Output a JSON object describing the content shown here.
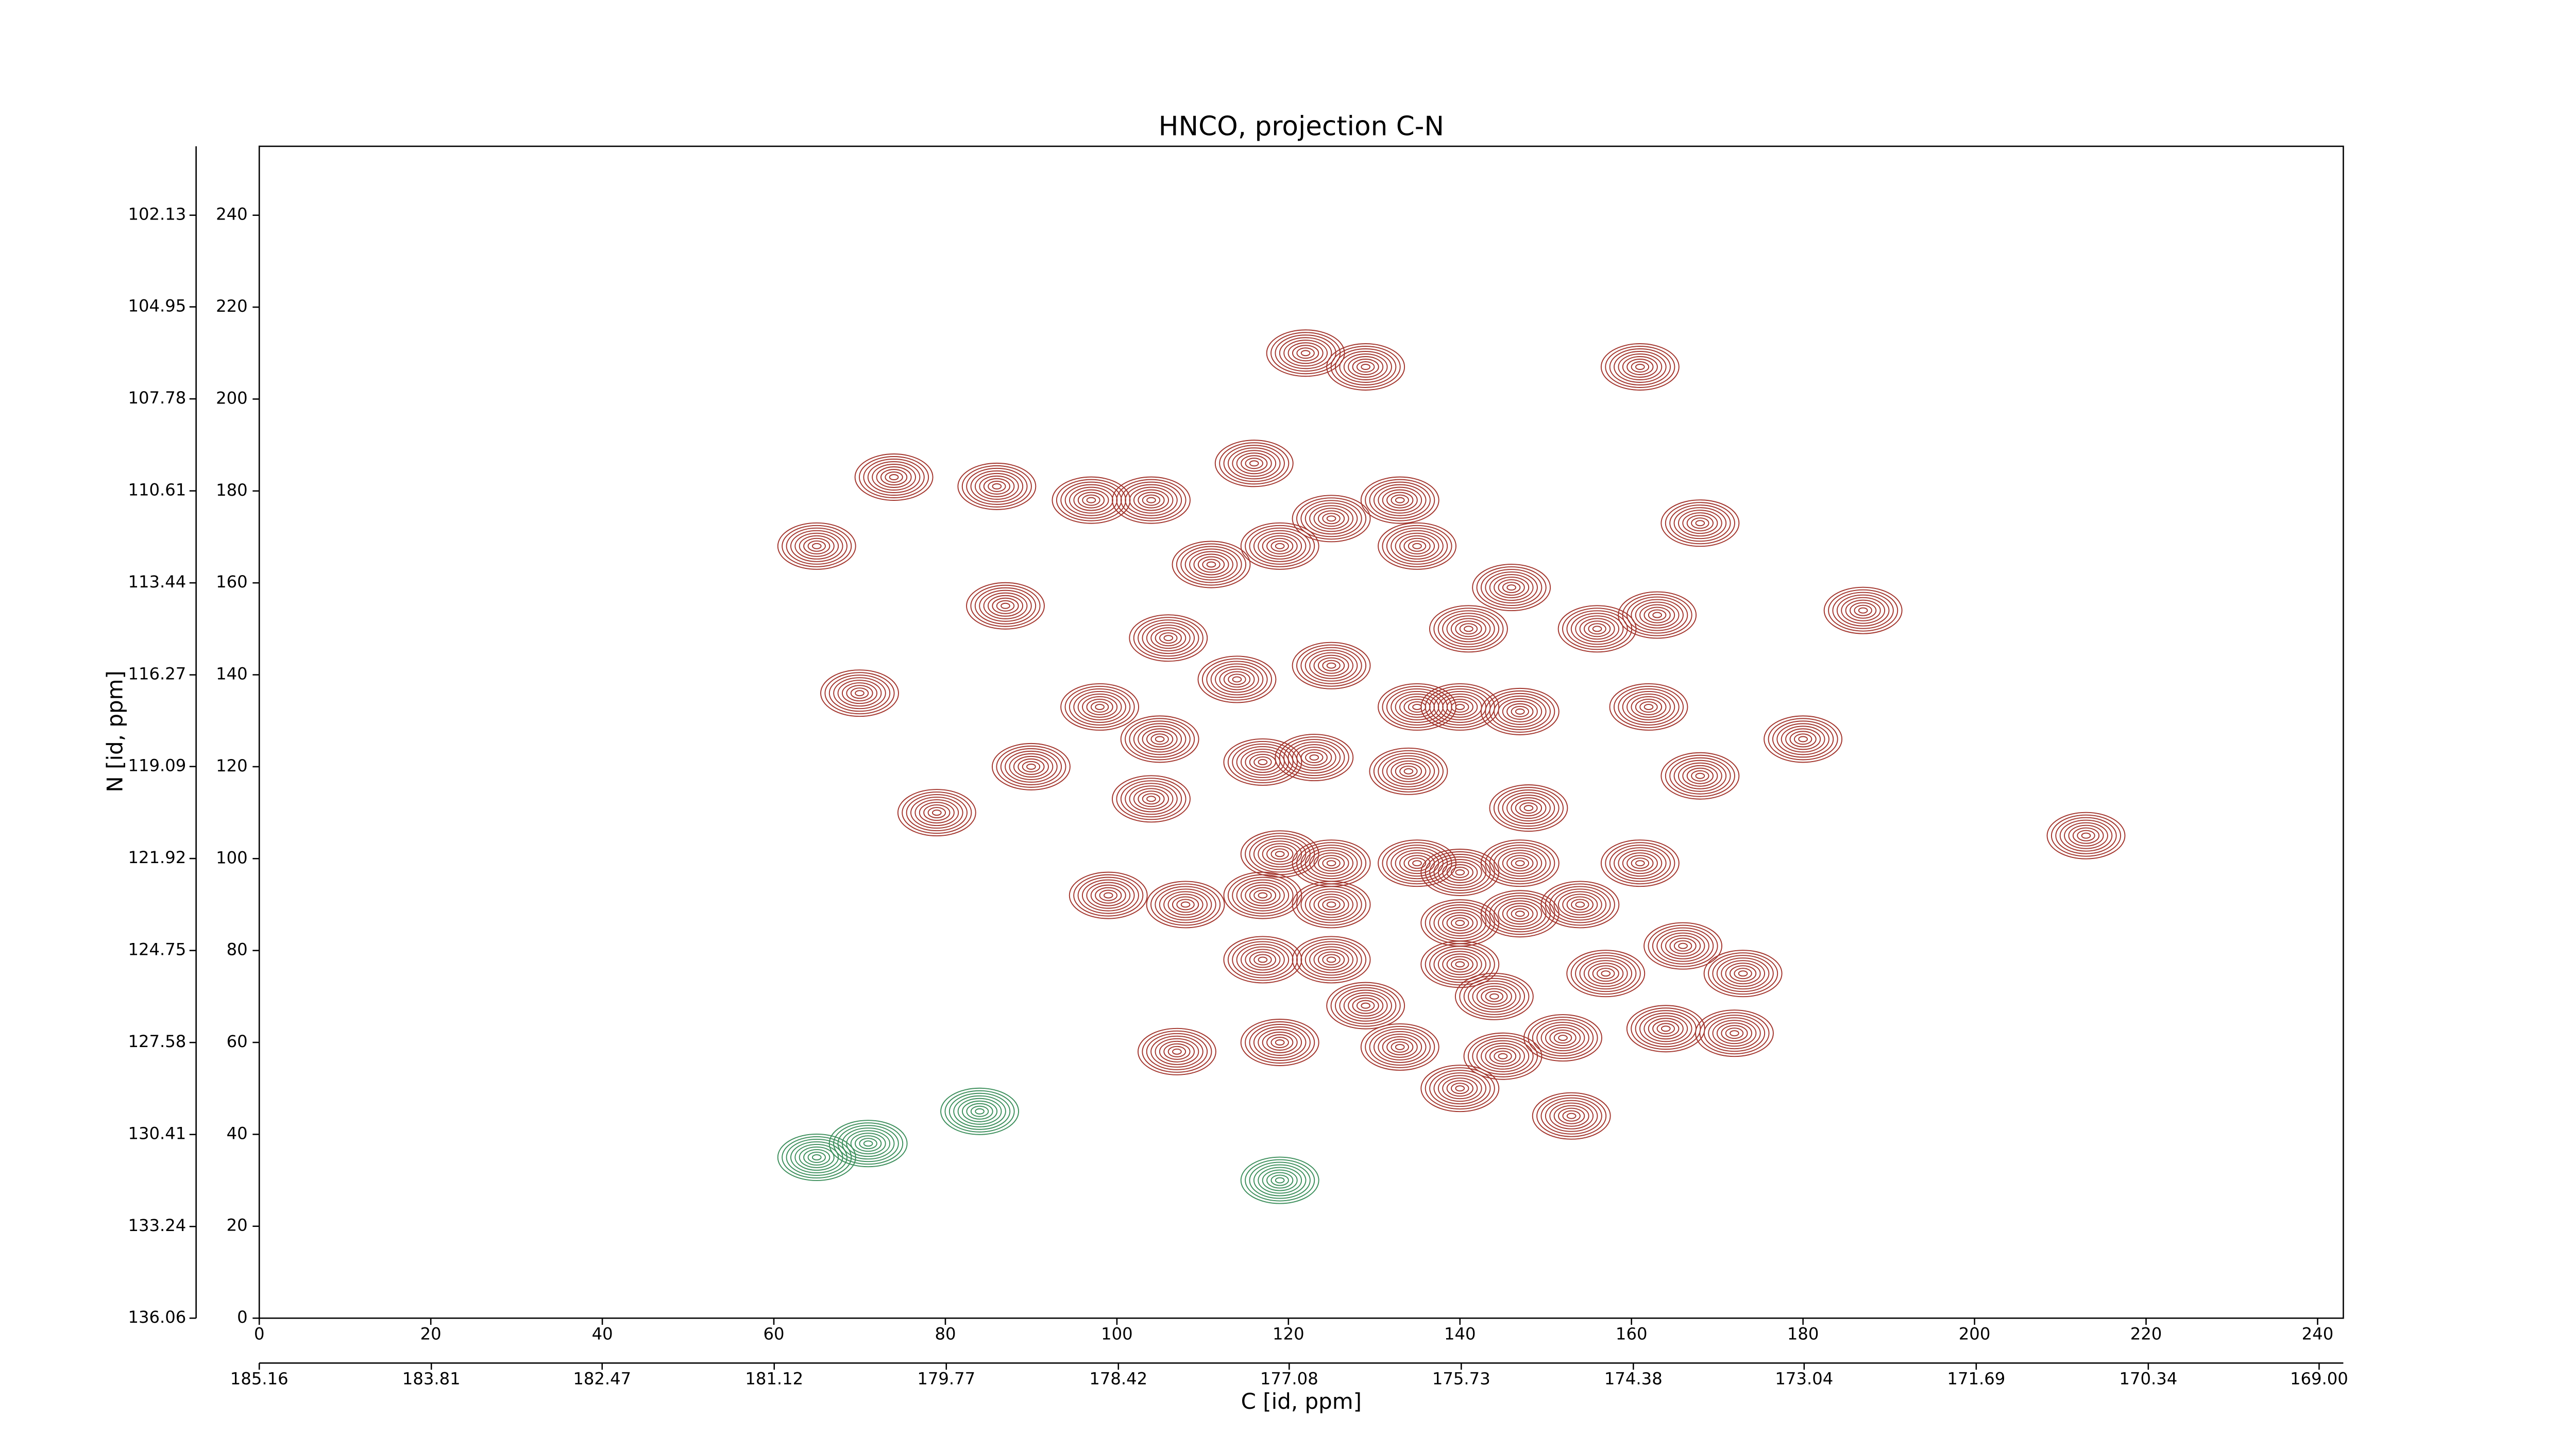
{
  "chart_data": {
    "type": "contour",
    "title": "HNCO, projection C-N",
    "x_label": "C [id, ppm]",
    "y_label": "N [id, ppm]",
    "xlim": [
      0,
      243
    ],
    "ylim": [
      0,
      255
    ],
    "xticks": [
      0,
      20,
      40,
      60,
      80,
      100,
      120,
      140,
      160,
      180,
      200,
      220,
      240
    ],
    "yticks": [
      0,
      20,
      40,
      60,
      80,
      100,
      120,
      140,
      160,
      180,
      200,
      220,
      240
    ],
    "x2lim": [
      185.16,
      168.81
    ],
    "x2ticks": [
      185.16,
      183.81,
      182.47,
      181.12,
      179.77,
      178.42,
      177.08,
      175.73,
      174.38,
      173.04,
      171.69,
      170.34,
      {
        "value": 169,
        "label": "169.00"
      }
    ],
    "y2lim": [
      136.06,
      100.01
    ],
    "y2ticks": [
      136.06,
      133.24,
      130.41,
      127.58,
      124.75,
      121.92,
      119.09,
      116.27,
      113.44,
      110.61,
      107.78,
      104.95,
      102.13
    ],
    "series": [
      {
        "color": "#a3362e",
        "x": [
          122,
          129,
          161,
          168,
          187,
          213,
          70,
          79,
          87,
          90,
          74,
          86,
          65,
          97,
          104,
          116,
          133,
          125,
          135,
          119,
          111,
          146,
          141,
          156,
          163,
          106,
          98,
          114,
          125,
          135,
          140,
          147,
          162,
          180,
          168,
          148,
          105,
          117,
          123,
          134,
          104,
          99,
          108,
          119,
          125,
          135,
          140,
          147,
          161,
          117,
          125,
          140,
          147,
          154,
          117,
          125,
          140,
          157,
          166,
          173,
          129,
          144,
          164,
          172,
          107,
          119,
          133,
          145,
          152,
          140,
          153
        ],
        "y": [
          210,
          207,
          207,
          173,
          154,
          105,
          136,
          110,
          155,
          120,
          183,
          181,
          168,
          178,
          178,
          186,
          178,
          174,
          168,
          168,
          164,
          159,
          150,
          150,
          153,
          148,
          133,
          139,
          142,
          133,
          133,
          132,
          133,
          126,
          118,
          111,
          126,
          121,
          122,
          119,
          113,
          92,
          90,
          101,
          99,
          99,
          97,
          99,
          99,
          92,
          90,
          86,
          88,
          90,
          78,
          78,
          77,
          75,
          81,
          75,
          68,
          70,
          63,
          62,
          58,
          60,
          59,
          57,
          61,
          50,
          44
        ]
      },
      {
        "color": "#3d8f5c",
        "x": [
          65,
          71,
          84,
          119
        ],
        "y": [
          35,
          38,
          45,
          30
        ]
      }
    ]
  }
}
